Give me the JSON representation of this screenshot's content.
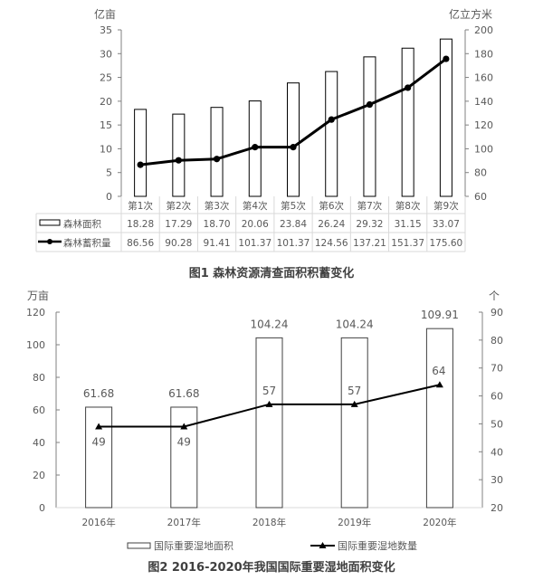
{
  "chart_data": [
    {
      "type": "bar",
      "title": "图1 森林资源清查面积积蓄变化",
      "categories": [
        "第1次",
        "第2次",
        "第3次",
        "第4次",
        "第5次",
        "第6次",
        "第7次",
        "第8次",
        "第9次"
      ],
      "series": [
        {
          "name": "森林面积",
          "type": "bar",
          "axis": "left",
          "values": [
            18.28,
            17.29,
            18.7,
            20.06,
            23.84,
            26.24,
            29.32,
            31.15,
            33.07
          ],
          "labels": [
            "18.28",
            "17.29",
            "18.70",
            "20.06",
            "23.84",
            "26.24",
            "29.32",
            "31.15",
            "33.07"
          ]
        },
        {
          "name": "森林蓄积量",
          "type": "line",
          "axis": "right",
          "marker": "circle",
          "values": [
            86.56,
            90.28,
            91.41,
            101.37,
            101.37,
            124.56,
            137.21,
            151.37,
            175.6
          ],
          "labels": [
            "86.56",
            "90.28",
            "91.41",
            "101.37",
            "101.37",
            "124.56",
            "137.21",
            "151.37",
            "175.60"
          ]
        }
      ],
      "ylabel": "亿亩",
      "ylabel_right": "亿立方米",
      "ylim": [
        0,
        35
      ],
      "yticks": [
        "0",
        "5",
        "10",
        "15",
        "20",
        "25",
        "30",
        "35"
      ],
      "ylim_right": [
        60,
        200
      ],
      "yticks_right": [
        "60",
        "80",
        "100",
        "120",
        "140",
        "160",
        "180",
        "200"
      ],
      "data_table": true,
      "grid": false
    },
    {
      "type": "bar",
      "title": "图2 2016-2020年我国国际重要湿地面积变化",
      "categories": [
        "2016年",
        "2017年",
        "2018年",
        "2019年",
        "2020年"
      ],
      "series": [
        {
          "name": "国际重要湿地面积",
          "type": "bar",
          "axis": "left",
          "values": [
            61.68,
            61.68,
            104.24,
            104.24,
            109.91
          ],
          "labels": [
            "61.68",
            "61.68",
            "104.24",
            "104.24",
            "109.91"
          ]
        },
        {
          "name": "国际重要湿地数量",
          "type": "line",
          "axis": "right",
          "marker": "triangle",
          "values": [
            49,
            49,
            57,
            57,
            64
          ],
          "labels": [
            "49",
            "49",
            "57",
            "57",
            "64"
          ]
        }
      ],
      "ylabel": "万亩",
      "ylabel_right": "个",
      "ylim": [
        0,
        120
      ],
      "yticks": [
        "0",
        "20",
        "40",
        "60",
        "80",
        "100",
        "120"
      ],
      "ylim_right": [
        20,
        90
      ],
      "yticks_right": [
        "20",
        "30",
        "40",
        "50",
        "60",
        "70",
        "80",
        "90"
      ],
      "legend_position": "bottom",
      "grid": false
    }
  ]
}
